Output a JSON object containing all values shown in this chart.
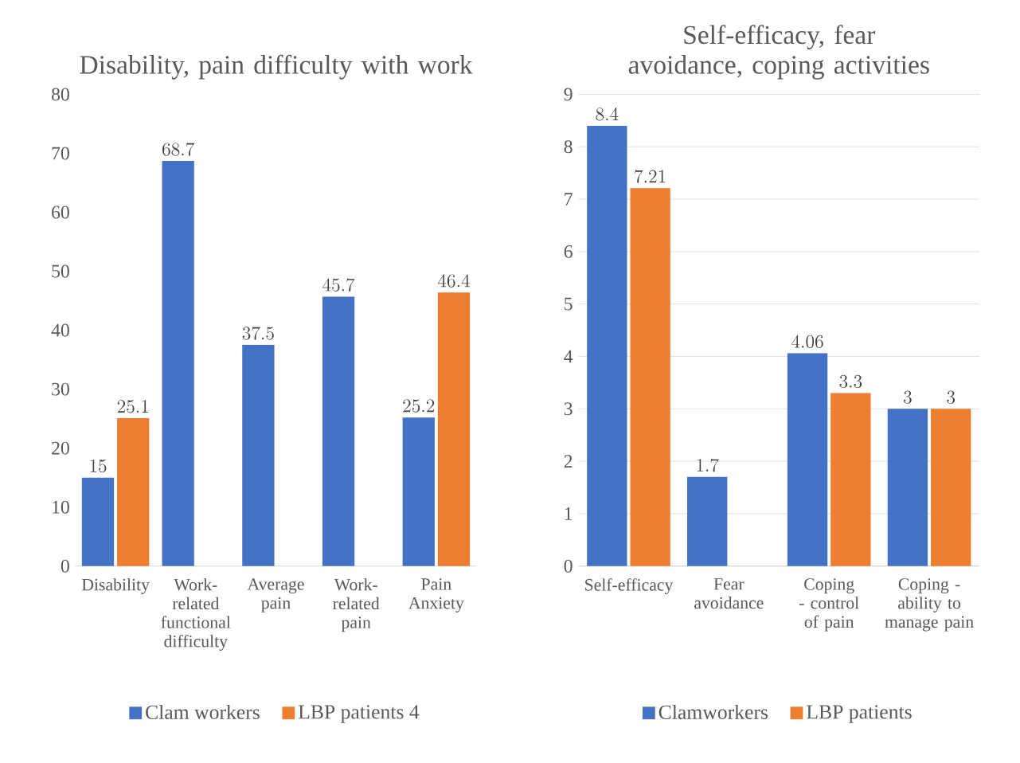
{
  "chart_data": [
    {
      "type": "bar",
      "title": "Disability, pain difficulty with work",
      "categories": [
        "Disability",
        "Work-related functional difficulty",
        "Average pain",
        "Work-related pain",
        "Pain Anxiety"
      ],
      "series": [
        {
          "name": "Clam workers",
          "color": "#4472c4",
          "values": [
            15,
            68.7,
            37.5,
            45.7,
            25.2
          ]
        },
        {
          "name": "LBP patients 4",
          "color": "#ed7d31",
          "values": [
            25.1,
            null,
            null,
            null,
            46.4
          ]
        }
      ],
      "ylim": [
        0,
        80
      ],
      "yticks": [
        0,
        10,
        20,
        30,
        40,
        50,
        60,
        70,
        80
      ],
      "data_labels": true,
      "legend": "bottom"
    },
    {
      "type": "bar",
      "title": "Self-efficacy, fear avoidance, coping activities",
      "categories": [
        "Self-efficacy",
        "Fear avoidance",
        "Coping - control of pain",
        "Coping - ability to manage pain"
      ],
      "series": [
        {
          "name": "Clamworkers",
          "color": "#4472c4",
          "values": [
            8.4,
            1.7,
            4.06,
            3
          ]
        },
        {
          "name": "LBP patients",
          "color": "#ed7d31",
          "values": [
            7.21,
            null,
            3.3,
            3
          ]
        }
      ],
      "ylim": [
        0,
        9
      ],
      "yticks": [
        0,
        1,
        2,
        3,
        4,
        5,
        6,
        7,
        8,
        9
      ],
      "grid": "y",
      "data_labels": true,
      "legend": "bottom"
    }
  ]
}
